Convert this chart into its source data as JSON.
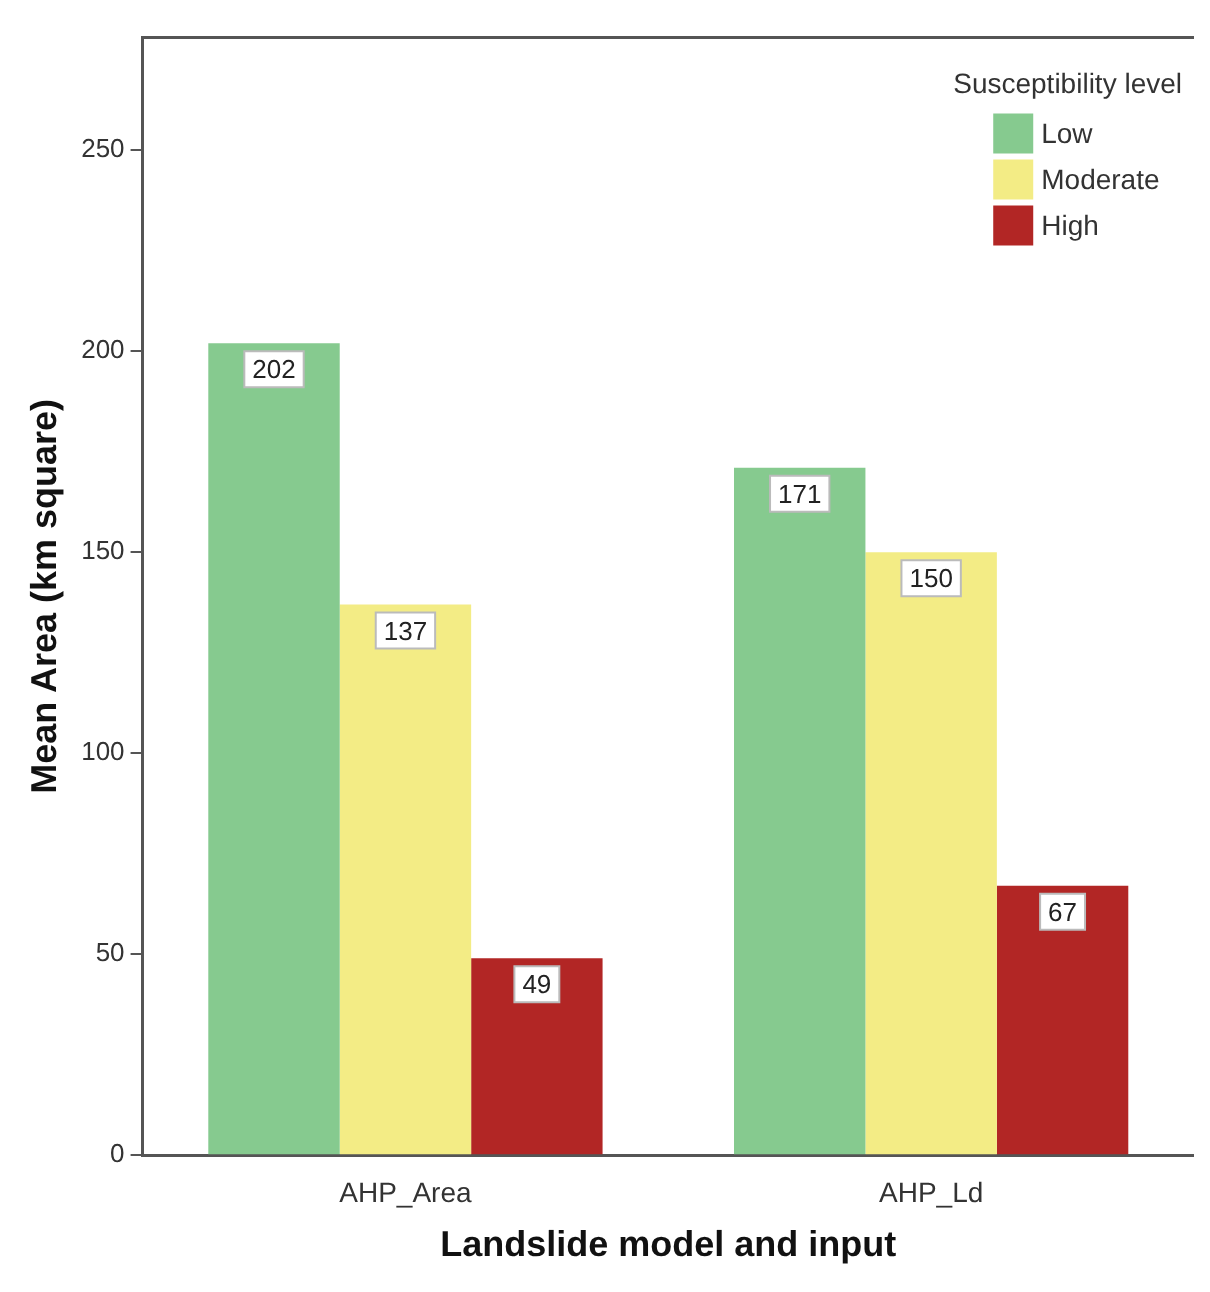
{
  "chart_data": {
    "type": "bar",
    "xlabel": "Landslide model and input",
    "ylabel": "Mean Area (km square)",
    "legend_title": "Susceptibility level",
    "categories": [
      "AHP_Area",
      "AHP_Ld"
    ],
    "series": [
      {
        "name": "Low",
        "color": "#86ca8f",
        "values": [
          202,
          171
        ]
      },
      {
        "name": "Moderate",
        "color": "#f3ec85",
        "values": [
          137,
          150
        ]
      },
      {
        "name": "High",
        "color": "#b22625",
        "values": [
          49,
          67
        ]
      }
    ],
    "ylim": [
      0,
      278
    ],
    "yticks": [
      0,
      50,
      100,
      150,
      200,
      250
    ],
    "grid": false,
    "legend": "top right",
    "data_labels": true
  }
}
